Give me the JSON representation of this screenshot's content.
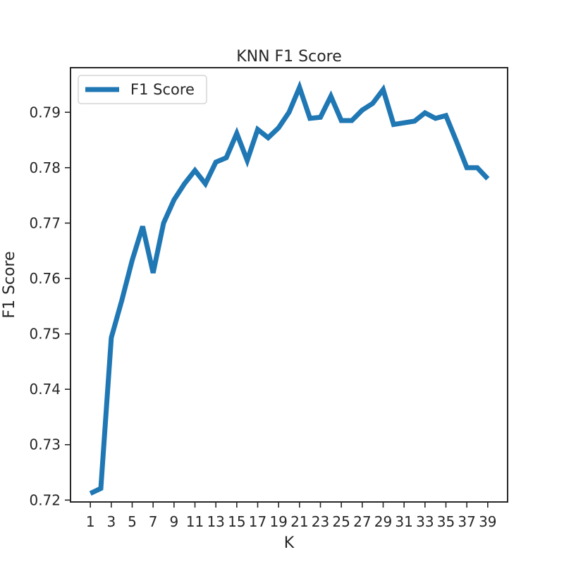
{
  "chart_data": {
    "type": "line",
    "title": "KNN F1 Score",
    "xlabel": "K",
    "ylabel": "F1 Score",
    "x": [
      1,
      2,
      3,
      4,
      5,
      6,
      7,
      8,
      9,
      10,
      11,
      12,
      13,
      14,
      15,
      16,
      17,
      18,
      19,
      20,
      21,
      22,
      23,
      24,
      25,
      26,
      27,
      28,
      29,
      30,
      31,
      32,
      33,
      34,
      35,
      36,
      37,
      38,
      39
    ],
    "series": [
      {
        "name": "F1 Score",
        "color": "#1f77b4",
        "values": [
          0.7212,
          0.7221,
          0.7493,
          0.756,
          0.7633,
          0.7694,
          0.761,
          0.77,
          0.7742,
          0.7771,
          0.7795,
          0.7771,
          0.781,
          0.7818,
          0.7862,
          0.7813,
          0.7869,
          0.7854,
          0.7872,
          0.79,
          0.7945,
          0.7889,
          0.7891,
          0.7929,
          0.7885,
          0.7885,
          0.7904,
          0.7916,
          0.7941,
          0.7878,
          0.7881,
          0.7884,
          0.7899,
          0.7889,
          0.7894,
          0.7848,
          0.78,
          0.78,
          0.778
        ]
      }
    ],
    "xticks": [
      1,
      3,
      5,
      7,
      9,
      11,
      13,
      15,
      17,
      19,
      21,
      23,
      25,
      27,
      29,
      31,
      33,
      35,
      37,
      39
    ],
    "yticks": [
      0.72,
      0.73,
      0.74,
      0.75,
      0.76,
      0.77,
      0.78,
      0.79
    ],
    "ytick_labels": [
      "0.72",
      "0.73",
      "0.74",
      "0.75",
      "0.76",
      "0.77",
      "0.78",
      "0.79"
    ],
    "xlim": [
      -0.9,
      40.9
    ],
    "ylim": [
      0.71966,
      0.79805
    ],
    "grid": false,
    "legend_position": "top-left"
  }
}
